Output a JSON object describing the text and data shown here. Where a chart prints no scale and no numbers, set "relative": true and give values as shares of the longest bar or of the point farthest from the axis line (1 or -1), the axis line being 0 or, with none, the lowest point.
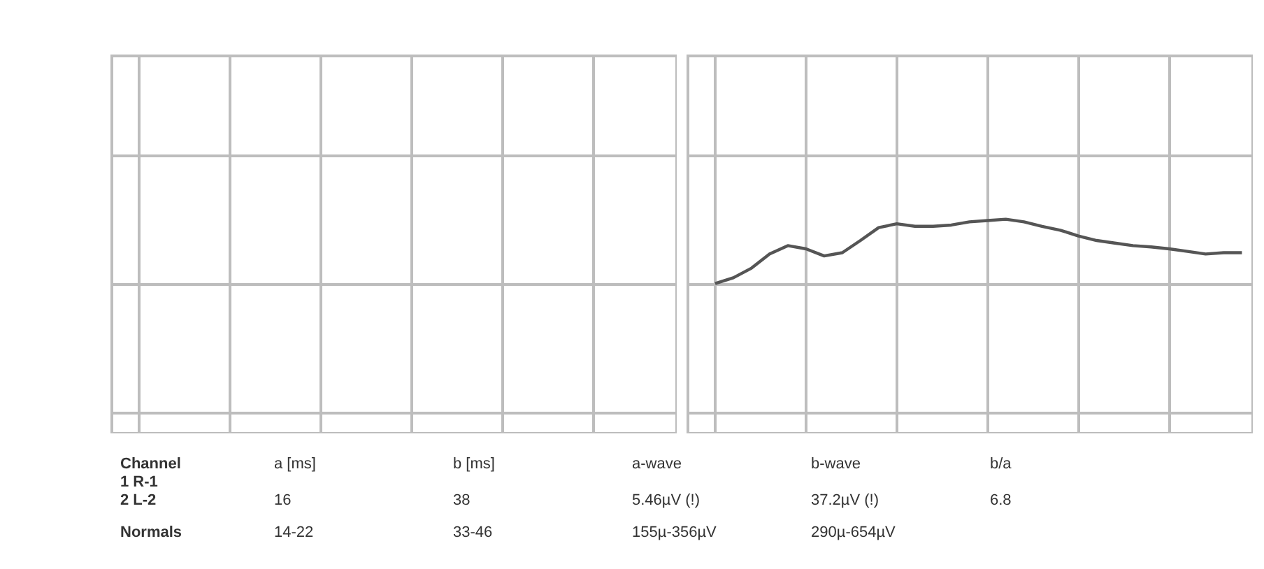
{
  "chart_data": [
    {
      "type": "other",
      "annotations": [
        "Channel",
        "a [ms]",
        "b [ms]",
        "a-wave",
        "b-wave",
        "b/a",
        "1 R-1",
        "2 L-2",
        "16",
        "38",
        "5.46µV (!)",
        "37.2µV (!)",
        "6.8",
        "Normals",
        "14-22",
        "33-46",
        "155µ-356µV",
        "290µ-654µV"
      ]
    },
    {
      "type": "line",
      "relative": true,
      "grid": true,
      "legend": false,
      "marker": "none",
      "tick_labels": false,
      "categories": [
        null,
        null,
        null,
        null,
        null,
        null,
        null,
        null,
        null,
        null,
        null,
        null,
        null,
        null,
        null,
        null,
        null,
        null,
        null,
        null,
        null,
        null,
        null,
        null,
        null,
        null,
        null,
        null,
        null,
        null
      ],
      "series": [
        {
          "color": "#555555",
          "values": [
            0,
            0.09,
            0.24,
            0.46,
            0.59,
            0.54,
            0.43,
            0.48,
            0.67,
            0.87,
            0.93,
            0.89,
            0.89,
            0.91,
            0.96,
            0.98,
            1,
            0.96,
            0.89,
            0.83,
            0.74,
            0.67,
            0.63,
            0.59,
            0.57,
            0.54,
            0.5,
            0.46,
            0.48,
            0.48
          ]
        }
      ]
    }
  ]
}
